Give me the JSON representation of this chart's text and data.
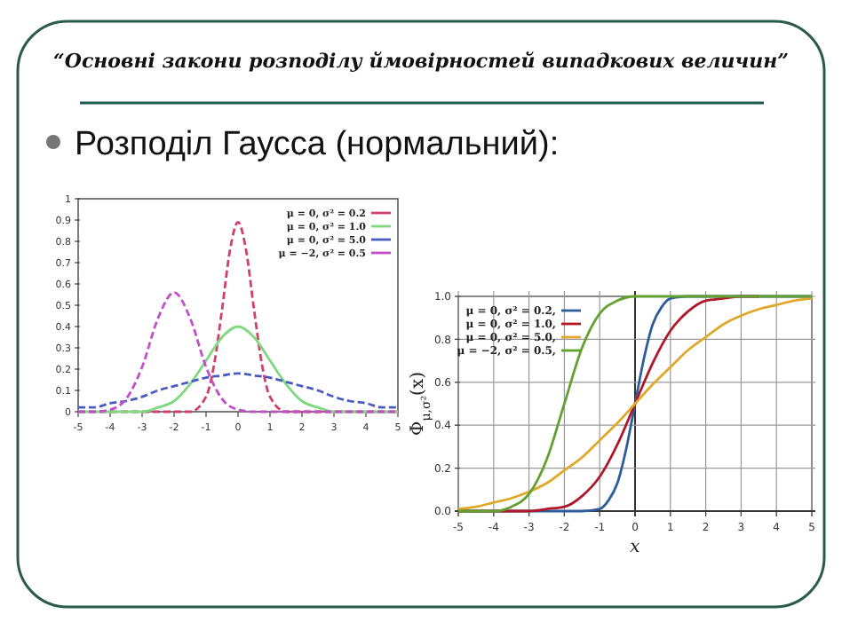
{
  "chart_data": [
    {
      "type": "line",
      "title": "“Основні закони розподілу ймовірностей випадкових величин”",
      "subtitle": "Розподіл Гаусса (нормальний):",
      "x": [
        -5,
        -4.5,
        -4,
        -3.5,
        -3,
        -2.5,
        -2,
        -1.5,
        -1,
        -0.5,
        0,
        0.5,
        1,
        1.5,
        2,
        2.5,
        3,
        3.5,
        4,
        4.5,
        5
      ],
      "xlim": [
        -5,
        5
      ],
      "ylim": [
        0,
        1
      ],
      "xticks": [
        -5,
        -4,
        -3,
        -2,
        -1,
        0,
        1,
        2,
        3,
        4,
        5
      ],
      "yticks": [
        0,
        0.1,
        0.2,
        0.3,
        0.4,
        0.5,
        0.6,
        0.7,
        0.8,
        0.9,
        1
      ],
      "grid": false,
      "legend": "top right",
      "series": [
        {
          "name": "μ = 0, σ² = 0.2",
          "color": "#d0406a",
          "line_style": "dashed",
          "x": [
            -5,
            -2,
            -1.5,
            -1,
            -0.75,
            -0.5,
            -0.25,
            0,
            0.25,
            0.5,
            0.75,
            1,
            1.5,
            2,
            5
          ],
          "values": [
            0,
            0,
            0,
            0.07,
            0.22,
            0.48,
            0.76,
            0.89,
            0.76,
            0.48,
            0.22,
            0.07,
            0,
            0,
            0
          ]
        },
        {
          "name": "μ = 0, σ² = 1.0",
          "color": "#80d880",
          "line_style": "solid",
          "values": [
            0,
            0,
            0,
            0,
            0,
            0.02,
            0.05,
            0.13,
            0.24,
            0.35,
            0.4,
            0.35,
            0.24,
            0.13,
            0.05,
            0.02,
            0,
            0,
            0,
            0,
            0
          ]
        },
        {
          "name": "μ = 0, σ² = 5.0",
          "color": "#4a5cc0",
          "line_style": "dashed",
          "values": [
            0.02,
            0.02,
            0.04,
            0.05,
            0.07,
            0.1,
            0.12,
            0.14,
            0.16,
            0.17,
            0.18,
            0.17,
            0.16,
            0.14,
            0.12,
            0.1,
            0.07,
            0.05,
            0.04,
            0.02,
            0.02
          ]
        },
        {
          "name": "μ = −2, σ² = 0.5",
          "color": "#c050c8",
          "line_style": "dashed",
          "values": [
            0,
            0,
            0.01,
            0.06,
            0.21,
            0.44,
            0.56,
            0.44,
            0.21,
            0.06,
            0.01,
            0,
            0,
            0,
            0,
            0,
            0,
            0,
            0,
            0,
            0
          ]
        }
      ]
    },
    {
      "type": "line",
      "x": [
        -5,
        -4.5,
        -4,
        -3.5,
        -3,
        -2.5,
        -2,
        -1.5,
        -1,
        -0.5,
        0,
        0.5,
        1,
        1.5,
        2,
        2.5,
        3,
        3.5,
        4,
        4.5,
        5
      ],
      "xlim": [
        -5,
        5
      ],
      "ylim": [
        0,
        1
      ],
      "xticks": [
        -5,
        -4,
        -3,
        -2,
        -1,
        0,
        1,
        2,
        3,
        4,
        5
      ],
      "yticks": [
        {
          "value": 0,
          "label": "0.0"
        },
        {
          "value": 0.2,
          "label": "0.2"
        },
        {
          "value": 0.4,
          "label": "0.4"
        },
        {
          "value": 0.6,
          "label": "0.6"
        },
        {
          "value": 0.8,
          "label": "0.8"
        },
        {
          "value": 1,
          "label": "1.0"
        }
      ],
      "grid": true,
      "legend": "top left",
      "xlabel": "x",
      "ylabel": "Φ$_{μ,σ²}$(x)",
      "series": [
        {
          "name": "μ = 0, σ² = 0.2,",
          "color": "#2f5c9a",
          "x": [
            -5,
            -1.5,
            -1,
            -0.75,
            -0.5,
            -0.25,
            0,
            0.25,
            0.5,
            0.75,
            1,
            1.5,
            5
          ],
          "values": [
            0,
            0,
            0.01,
            0.05,
            0.13,
            0.29,
            0.5,
            0.71,
            0.87,
            0.95,
            0.99,
            1,
            1
          ]
        },
        {
          "name": "μ = 0, σ² = 1.0,",
          "color": "#b01828",
          "values": [
            0,
            0,
            0,
            0,
            0,
            0.01,
            0.02,
            0.07,
            0.16,
            0.31,
            0.5,
            0.69,
            0.84,
            0.93,
            0.98,
            0.99,
            1,
            1,
            null,
            null,
            null
          ]
        },
        {
          "name": "μ = 0, σ² = 5.0,",
          "color": "#e0a828",
          "values": [
            0.01,
            0.02,
            0.04,
            0.06,
            0.09,
            0.13,
            0.19,
            0.25,
            0.33,
            0.41,
            0.5,
            0.59,
            0.67,
            0.75,
            0.81,
            0.87,
            0.91,
            0.94,
            0.96,
            0.98,
            0.99
          ]
        },
        {
          "name": "μ = −2, σ² = 0.5,",
          "color": "#62a030",
          "values": [
            0,
            0,
            0,
            0.02,
            0.08,
            0.24,
            0.5,
            0.76,
            0.92,
            0.98,
            1,
            1,
            1,
            1,
            1,
            1,
            1,
            1,
            1,
            1,
            1
          ]
        }
      ]
    }
  ]
}
